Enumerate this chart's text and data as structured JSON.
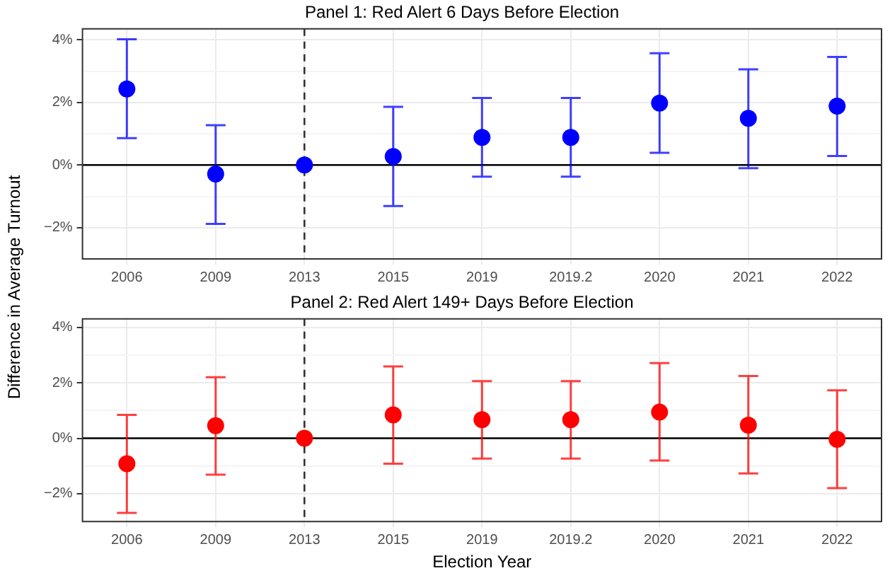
{
  "chart_data": [
    {
      "type": "scatter",
      "title": "Panel 1: Red Alert 6 Days Before Election",
      "ylabel": "Difference in Average Turnout",
      "categories": [
        "2006",
        "2009",
        "2013",
        "2015",
        "2019",
        "2019.2",
        "2020",
        "2021",
        "2022"
      ],
      "series": [
        {
          "color": "#0000ff",
          "values": [
            2.43,
            -0.29,
            0,
            0.27,
            0.88,
            0.88,
            1.98,
            1.49,
            1.88
          ],
          "errors": [
            [
              0.86,
              4.02
            ],
            [
              -1.88,
              1.27
            ],
            null,
            [
              -1.31,
              1.86
            ],
            [
              -0.37,
              2.14
            ],
            [
              -0.37,
              2.14
            ],
            [
              0.39,
              3.57
            ],
            [
              -0.1,
              3.06
            ],
            [
              0.29,
              3.45
            ]
          ]
        }
      ],
      "ylim": [
        -3,
        4.35
      ],
      "yticks": [
        {
          "value": -2,
          "label": "−2%"
        },
        {
          "value": -1,
          "label": null
        },
        {
          "value": 0,
          "label": "0%"
        },
        {
          "value": 1,
          "label": null
        },
        {
          "value": 2,
          "label": "2%"
        },
        {
          "value": 3,
          "label": null
        },
        {
          "value": 4,
          "label": "4%"
        }
      ],
      "ref_lines": [
        {
          "axis": "y",
          "value": 0,
          "color": "#000000",
          "line_style": "solid"
        },
        {
          "axis": "x",
          "value": "2013",
          "color": "#333333",
          "line_style": "dashed"
        }
      ],
      "grid": true,
      "legend": false,
      "marker": "circle"
    },
    {
      "type": "scatter",
      "title": "Panel 2: Red Alert 149+ Days Before Election",
      "xlabel": "Election Year",
      "categories": [
        "2006",
        "2009",
        "2013",
        "2015",
        "2019",
        "2019.2",
        "2020",
        "2021",
        "2022"
      ],
      "series": [
        {
          "color": "#ff0000",
          "values": [
            -0.92,
            0.45,
            0,
            0.84,
            0.67,
            0.67,
            0.94,
            0.47,
            -0.04
          ],
          "errors": [
            [
              -2.69,
              0.84
            ],
            [
              -1.31,
              2.2
            ],
            null,
            [
              -0.92,
              2.59
            ],
            [
              -0.73,
              2.06
            ],
            [
              -0.73,
              2.06
            ],
            [
              -0.8,
              2.71
            ],
            [
              -1.27,
              2.24
            ],
            [
              -1.8,
              1.73
            ]
          ]
        }
      ],
      "ylim": [
        -3,
        4.3
      ],
      "yticks": [
        {
          "value": -2,
          "label": "−2%"
        },
        {
          "value": -1,
          "label": null
        },
        {
          "value": 0,
          "label": "0%"
        },
        {
          "value": 1,
          "label": null
        },
        {
          "value": 2,
          "label": "2%"
        },
        {
          "value": 3,
          "label": null
        },
        {
          "value": 4,
          "label": "4%"
        }
      ],
      "ref_lines": [
        {
          "axis": "y",
          "value": 0,
          "color": "#000000",
          "line_style": "solid"
        },
        {
          "axis": "x",
          "value": "2013",
          "color": "#333333",
          "line_style": "dashed"
        }
      ],
      "grid": true,
      "legend": false,
      "marker": "circle"
    }
  ]
}
